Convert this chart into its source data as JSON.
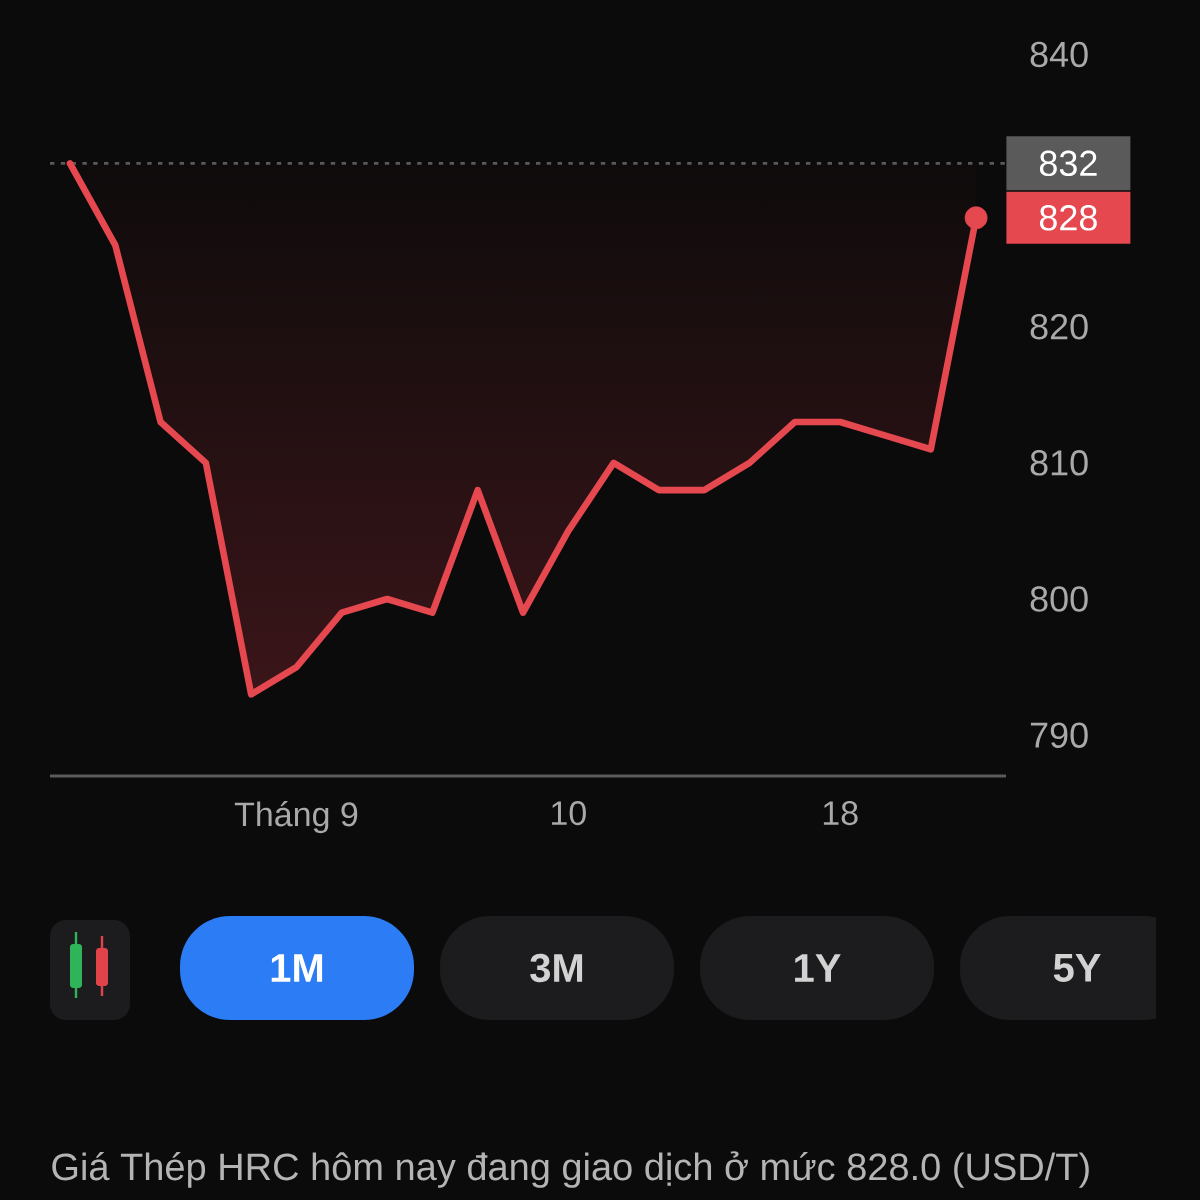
{
  "chart_data": {
    "type": "line",
    "categories": [
      null,
      null,
      null,
      null,
      null,
      "Tháng 9",
      null,
      null,
      null,
      null,
      null,
      "10",
      null,
      null,
      null,
      null,
      null,
      "18",
      null,
      null,
      null
    ],
    "series": [
      {
        "color": "#e5484f",
        "values": [
          832,
          826,
          813,
          810,
          793,
          795,
          799,
          800,
          799,
          808,
          799,
          805,
          810,
          808,
          808,
          810,
          813,
          813,
          812,
          811,
          828
        ]
      },
      {
        "type": "scatter",
        "color": "#e5484f",
        "marker": "circle",
        "values": [
          null,
          null,
          null,
          null,
          null,
          null,
          null,
          null,
          null,
          null,
          null,
          null,
          null,
          null,
          null,
          null,
          null,
          null,
          null,
          null,
          828
        ],
        "value_labels": [
          null,
          null,
          null,
          null,
          null,
          null,
          null,
          null,
          null,
          null,
          null,
          null,
          null,
          null,
          null,
          null,
          null,
          null,
          null,
          null,
          "828"
        ]
      }
    ],
    "ylim": [
      787,
      844
    ],
    "yticks": [
      790,
      800,
      810,
      820,
      840
    ],
    "ref_lines": [
      {
        "axis": "y",
        "value": 832,
        "label": "832",
        "color": "#5a5a5a",
        "line_style": "dotted"
      }
    ],
    "annotations": [
      "1M",
      "3M",
      "1Y",
      "5Y",
      "Giá Thép HRC hôm nay đang giao dịch ở mức 828.0 (USD/T)"
    ]
  }
}
